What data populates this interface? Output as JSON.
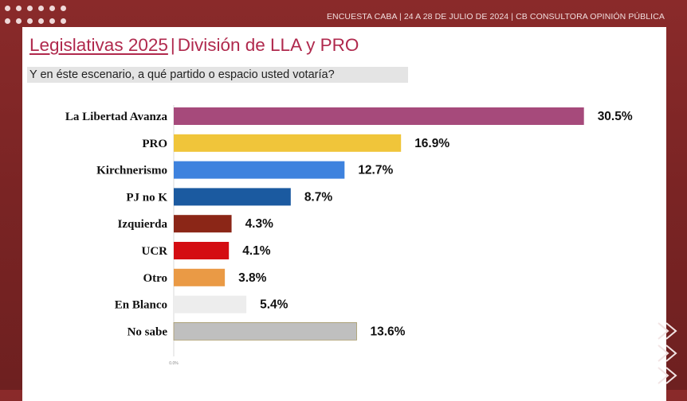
{
  "header": {
    "text": "ENCUESTA CABA  | 24 A 28 DE JULIO DE  2024 | CB CONSULTORA OPINIÓN PÚBLICA"
  },
  "slide": {
    "title_main": "Legislativas 2025",
    "title_sep": "|",
    "title_rest": "División de LLA y PRO",
    "question": "Y en éste escenario, a qué partido o espacio usted votaría?"
  },
  "chart_data": {
    "type": "bar",
    "orientation": "horizontal",
    "categories": [
      "La Libertad Avanza",
      "PRO",
      "Kirchnerismo",
      "PJ no K",
      "Izquierda",
      "UCR",
      "Otro",
      "En Blanco",
      "No sabe"
    ],
    "values": [
      30.5,
      16.9,
      12.7,
      8.7,
      4.3,
      4.1,
      3.8,
      5.4,
      13.6
    ],
    "value_labels": [
      "30.5%",
      "16.9%",
      "12.7%",
      "8.7%",
      "4.3%",
      "4.1%",
      "3.8%",
      "5.4%",
      "13.6%"
    ],
    "colors": [
      "#a64a7b",
      "#f0c53a",
      "#3e82de",
      "#1b5aa0",
      "#8b2617",
      "#d40d12",
      "#ea9a45",
      "#ededed",
      "#bfbfbf"
    ],
    "x_tick_label": "0.0%",
    "xlim": [
      0,
      32
    ],
    "grid": false,
    "legend": "none"
  },
  "decor": {
    "dots_color": "#efd9d9",
    "background_color": "#7d2525",
    "title_color": "#b0294d"
  }
}
